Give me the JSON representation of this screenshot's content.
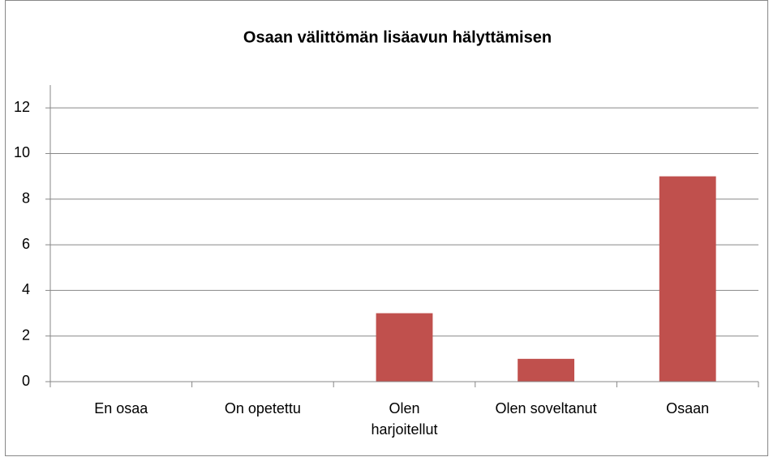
{
  "chart_data": {
    "type": "bar",
    "title": "Osaan välittömän lisäavun hälyttämisen",
    "categories": [
      "En osaa",
      "On opetettu",
      "Olen harjoitellut",
      "Olen soveltanut",
      "Osaan"
    ],
    "values": [
      0,
      0,
      3,
      1,
      9
    ],
    "color": "#c0504d",
    "ylim": [
      0,
      13
    ],
    "yticks": [
      0,
      2,
      4,
      6,
      8,
      10,
      12
    ],
    "grid": true
  }
}
